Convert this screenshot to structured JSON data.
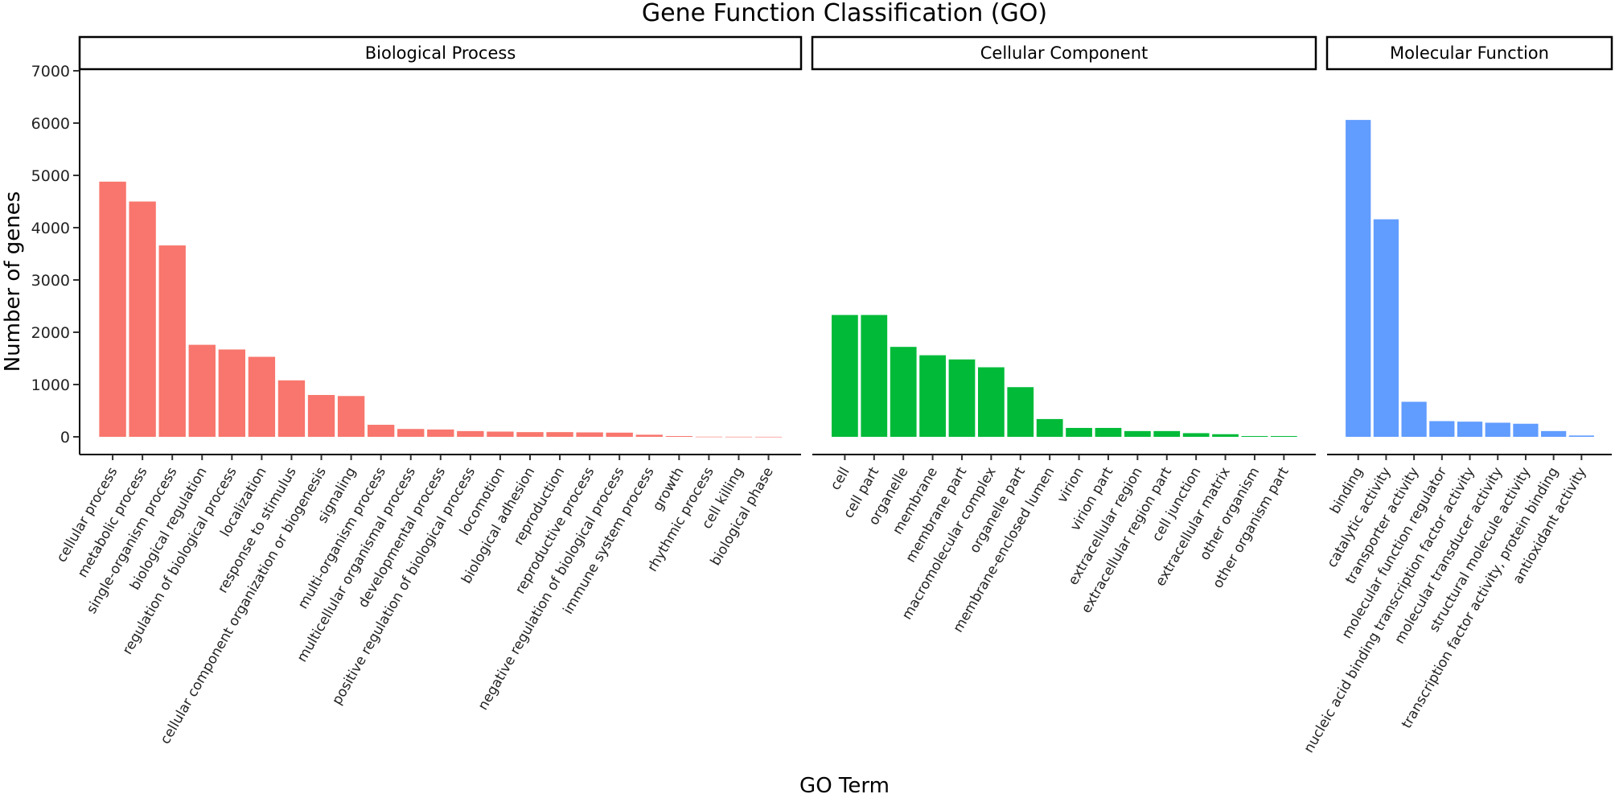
{
  "chart_data": {
    "type": "bar",
    "title": "Gene Function Classification (GO)",
    "xlabel": "GO Term",
    "ylabel": "Number of genes",
    "ylim": [
      0,
      7000
    ],
    "yticks": [
      0,
      1000,
      2000,
      3000,
      4000,
      5000,
      6000,
      7000
    ],
    "grid": false,
    "legend": "none",
    "panels": [
      {
        "name": "Biological Process",
        "color": "#F8766D",
        "categories": [
          "cellular process",
          "metabolic process",
          "single-organism process",
          "biological regulation",
          "regulation of biological process",
          "localization",
          "response to stimulus",
          "cellular component organization or biogenesis",
          "signaling",
          "multi-organism process",
          "multicellular organismal process",
          "developmental process",
          "positive regulation of biological process",
          "locomotion",
          "biological adhesion",
          "reproduction",
          "reproductive process",
          "negative regulation of biological process",
          "immune system process",
          "growth",
          "rhythmic process",
          "cell killing",
          "biological phase"
        ],
        "values": [
          4880,
          4500,
          3660,
          1760,
          1670,
          1530,
          1080,
          800,
          780,
          230,
          150,
          140,
          110,
          100,
          90,
          90,
          85,
          80,
          40,
          15,
          3,
          2,
          1
        ]
      },
      {
        "name": "Cellular Component",
        "color": "#00BA38",
        "categories": [
          "cell",
          "cell part",
          "organelle",
          "membrane",
          "membrane part",
          "macromolecular complex",
          "organelle part",
          "membrane-enclosed lumen",
          "virion",
          "virion part",
          "extracellular region",
          "extracellular region part",
          "cell junction",
          "extracellular matrix",
          "other organism",
          "other organism part"
        ],
        "values": [
          2330,
          2330,
          1720,
          1560,
          1480,
          1330,
          950,
          340,
          170,
          170,
          110,
          110,
          70,
          50,
          15,
          15
        ]
      },
      {
        "name": "Molecular Function",
        "color": "#619CFF",
        "categories": [
          "binding",
          "catalytic activity",
          "transporter activity",
          "molecular function regulator",
          "nucleic acid binding transcription factor activity",
          "molecular transducer activity",
          "structural molecule activity",
          "transcription factor activity, protein binding",
          "antioxidant activity"
        ],
        "values": [
          6060,
          4160,
          670,
          300,
          290,
          270,
          250,
          110,
          25
        ]
      }
    ]
  }
}
